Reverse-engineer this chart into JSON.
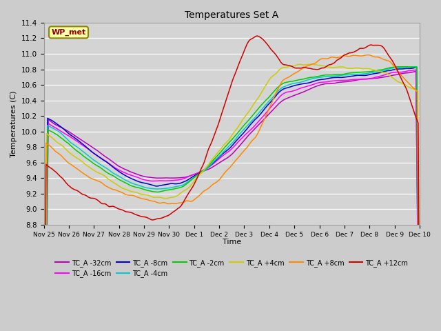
{
  "title": "Temperatures Set A",
  "xlabel": "Time",
  "ylabel": "Temperatures (C)",
  "ylim": [
    8.8,
    11.4
  ],
  "fig_facecolor": "#cccccc",
  "ax_facecolor": "#d4d4d4",
  "legend_label": "WP_met",
  "series": [
    {
      "label": "TC_A -32cm",
      "color": "#bb00bb"
    },
    {
      "label": "TC_A -16cm",
      "color": "#ff00ff"
    },
    {
      "label": "TC_A -8cm",
      "color": "#0000cc"
    },
    {
      "label": "TC_A -4cm",
      "color": "#00cccc"
    },
    {
      "label": "TC_A -2cm",
      "color": "#00cc00"
    },
    {
      "label": "TC_A +4cm",
      "color": "#cccc00"
    },
    {
      "label": "TC_A +8cm",
      "color": "#ff8800"
    },
    {
      "label": "TC_A +12cm",
      "color": "#cc0000"
    }
  ],
  "xtick_labels": [
    "Nov 25",
    "Nov 26",
    "Nov 27",
    "Nov 28",
    "Nov 29",
    "Nov 30",
    "Dec 1",
    "Dec 2",
    "Dec 3",
    "Dec 4",
    "Dec 5",
    "Dec 6",
    "Dec 7",
    "Dec 8",
    "Dec 9",
    "Dec 10"
  ],
  "num_points": 500
}
